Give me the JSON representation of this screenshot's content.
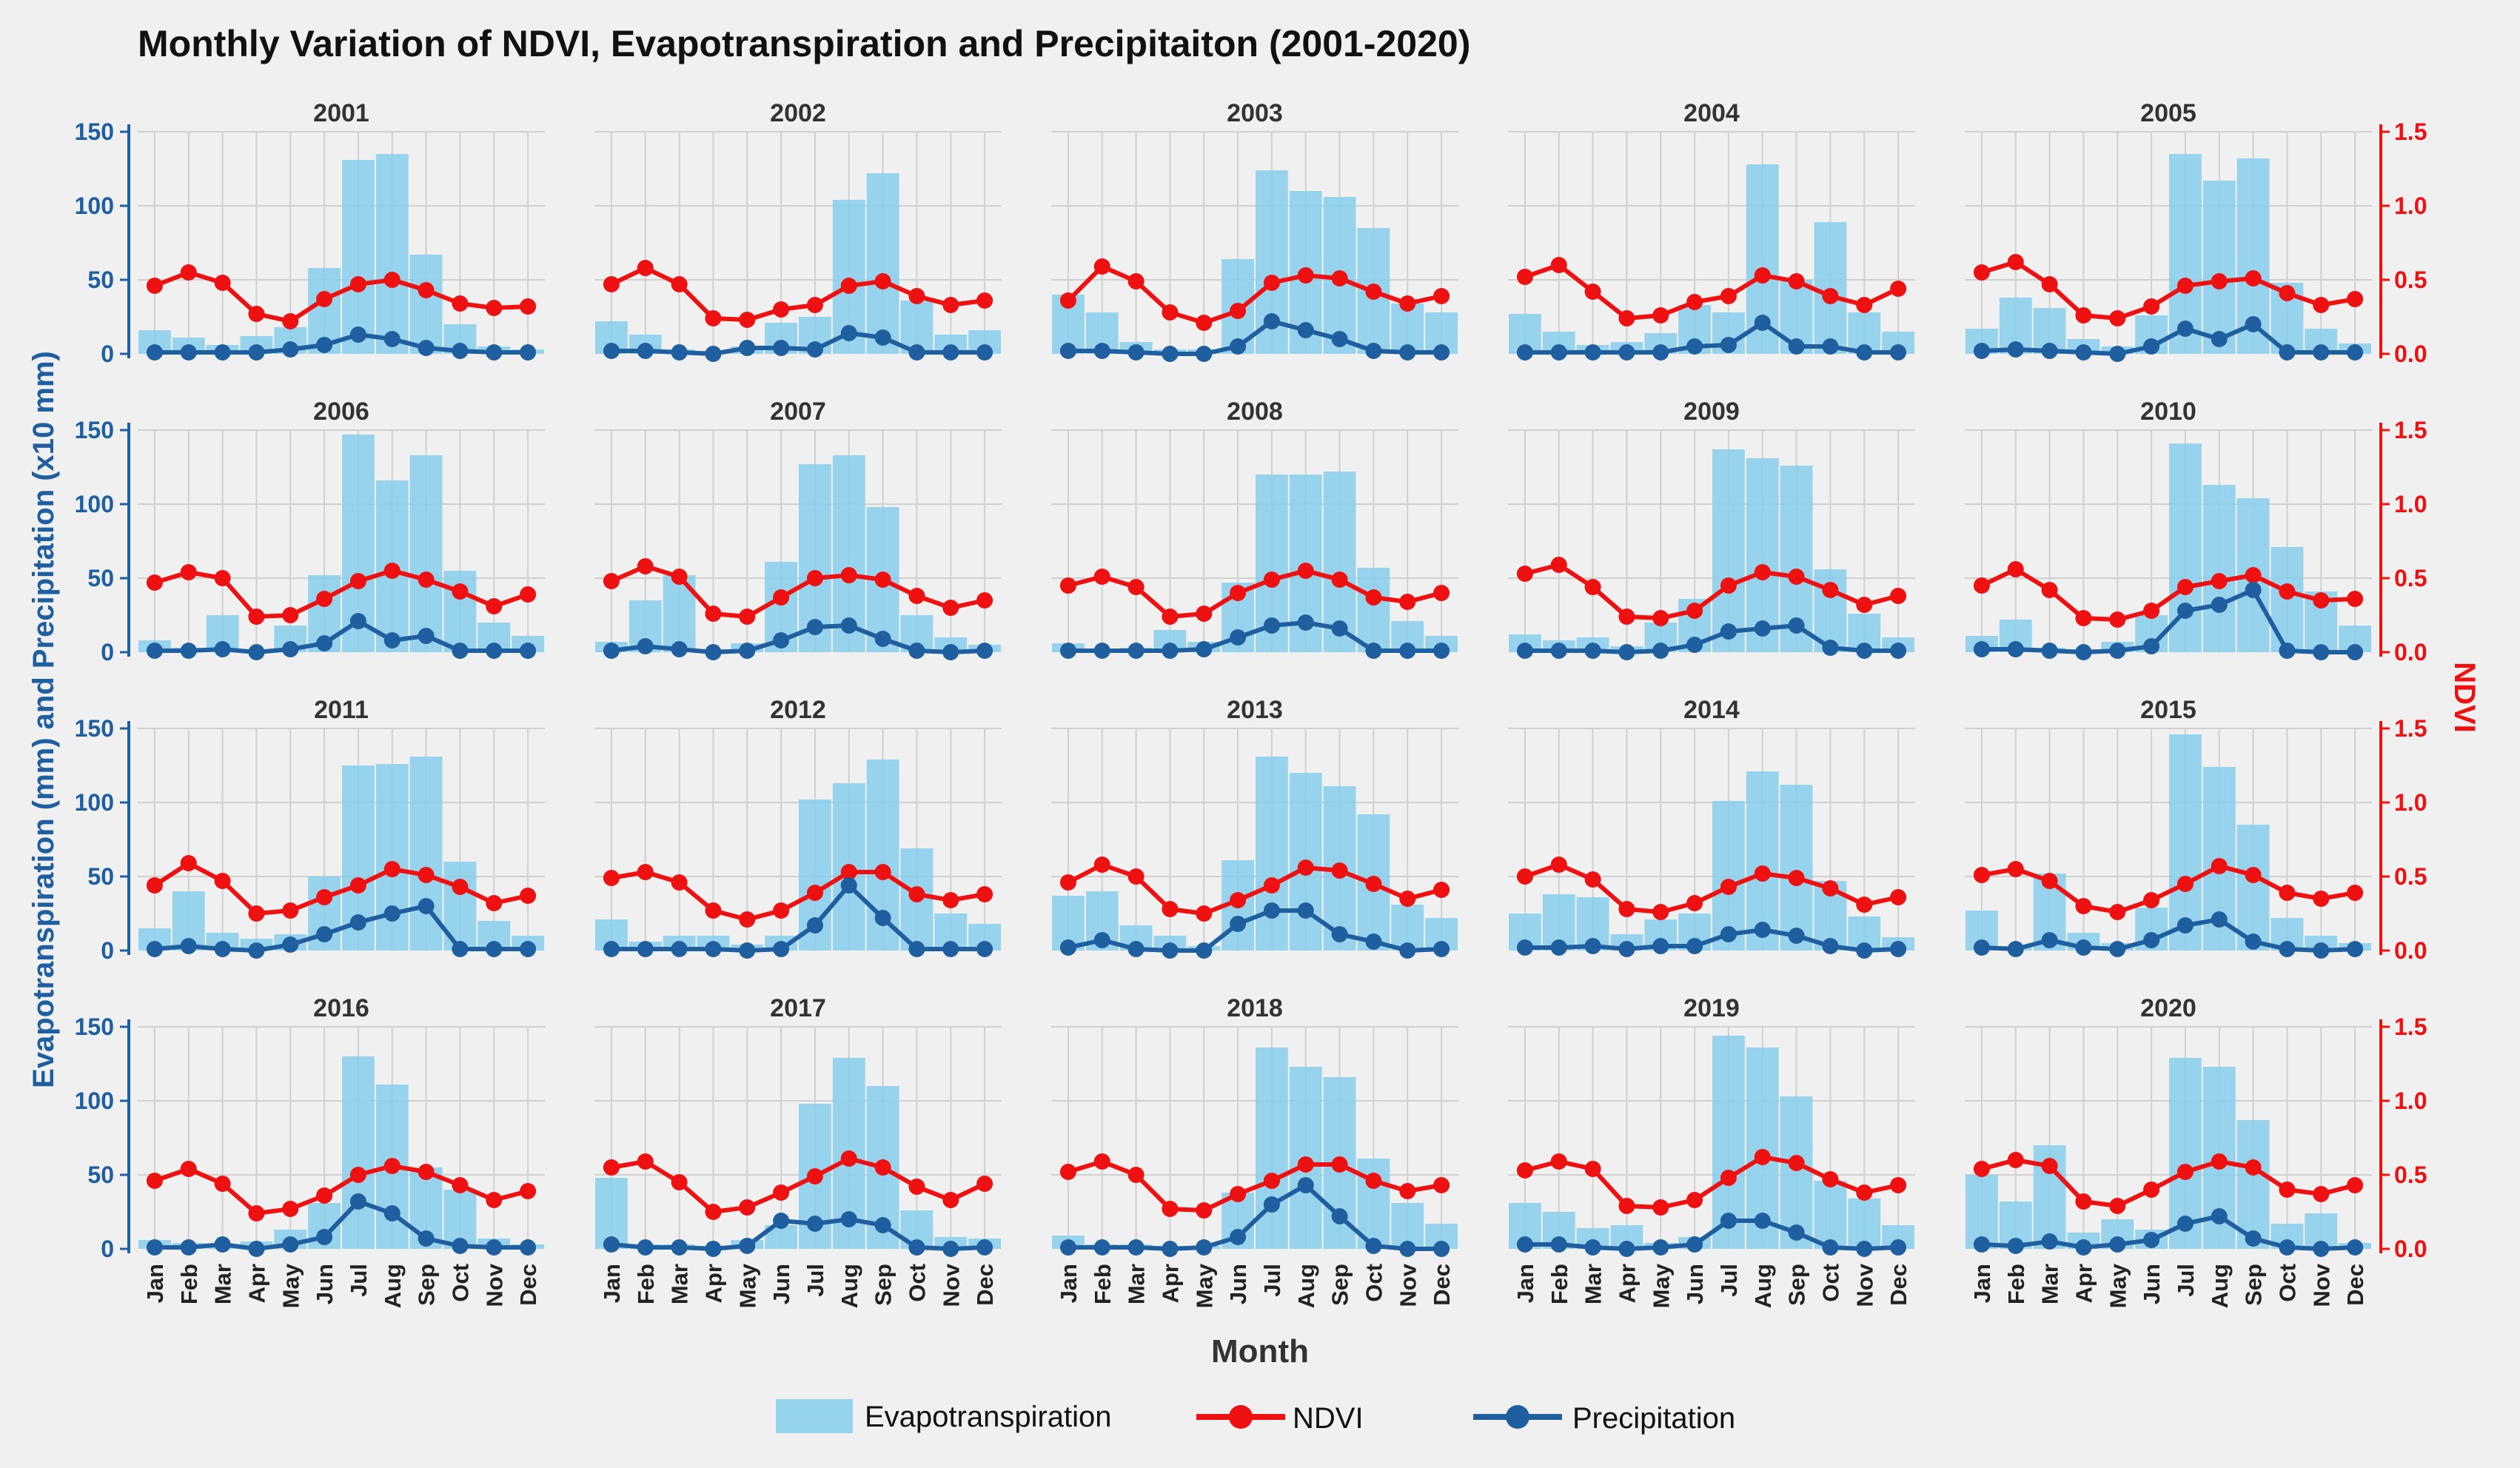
{
  "colors": {
    "background": "#f0f0f0",
    "evapotranspiration": "#87ceeb",
    "ndvi": "#ee1111",
    "precipitation": "#1f5fa0",
    "left_axis": "#1f5fa0",
    "right_axis": "#ee1111",
    "grid": "#d0d0d0",
    "text": "#111111"
  },
  "chart_data": {
    "type": "bar+line",
    "title": "Monthly Variation of NDVI, Evapotranspiration and Precipitaiton (2001-2020)",
    "xlabel": "Month",
    "ylabel_left": "Evapotranspiration (mm) and Precipitation (x10 mm)",
    "ylabel_right": "NDVI",
    "left_ylim": [
      0,
      150
    ],
    "left_ticks": [
      "0",
      "50",
      "100",
      "150"
    ],
    "right_ylim": [
      0,
      1.5
    ],
    "right_ticks": [
      "0.0",
      "0.5",
      "1.0",
      "1.5"
    ],
    "grid": true,
    "legend_position": "bottom-center",
    "legend": [
      "Evapotranspiration",
      "NDVI",
      "Precipitation"
    ],
    "months": [
      "Jan",
      "Feb",
      "Mar",
      "Apr",
      "May",
      "Jun",
      "Jul",
      "Aug",
      "Sep",
      "Oct",
      "Nov",
      "Dec"
    ],
    "panels": [
      {
        "year": "2001",
        "et": [
          16,
          11,
          6,
          12,
          18,
          58,
          131,
          135,
          67,
          20,
          5,
          3
        ],
        "ndvi": [
          0.46,
          0.55,
          0.48,
          0.27,
          0.22,
          0.37,
          0.47,
          0.5,
          0.43,
          0.34,
          0.31,
          0.32
        ],
        "precip": [
          1,
          1,
          1,
          1,
          3,
          6,
          13,
          10,
          4,
          2,
          1,
          1
        ]
      },
      {
        "year": "2002",
        "et": [
          22,
          13,
          3,
          2,
          5,
          21,
          25,
          104,
          122,
          36,
          13,
          16
        ],
        "ndvi": [
          0.47,
          0.58,
          0.47,
          0.24,
          0.23,
          0.3,
          0.33,
          0.46,
          0.49,
          0.39,
          0.33,
          0.36
        ],
        "precip": [
          2,
          2,
          1,
          0,
          4,
          4,
          3,
          14,
          11,
          1,
          1,
          1
        ]
      },
      {
        "year": "2003",
        "et": [
          40,
          28,
          8,
          3,
          3,
          64,
          124,
          110,
          106,
          85,
          34,
          28
        ],
        "ndvi": [
          0.36,
          0.59,
          0.49,
          0.28,
          0.21,
          0.29,
          0.48,
          0.53,
          0.51,
          0.42,
          0.34,
          0.39
        ],
        "precip": [
          2,
          2,
          1,
          0,
          0,
          5,
          22,
          16,
          10,
          2,
          1,
          1
        ]
      },
      {
        "year": "2004",
        "et": [
          27,
          15,
          6,
          8,
          14,
          33,
          28,
          128,
          50,
          89,
          28,
          15
        ],
        "ndvi": [
          0.52,
          0.6,
          0.42,
          0.24,
          0.26,
          0.35,
          0.39,
          0.53,
          0.49,
          0.39,
          0.33,
          0.44
        ],
        "precip": [
          1,
          1,
          1,
          1,
          1,
          5,
          6,
          21,
          5,
          5,
          1,
          1
        ]
      },
      {
        "year": "2005",
        "et": [
          17,
          38,
          31,
          10,
          5,
          26,
          135,
          117,
          132,
          48,
          17,
          7
        ],
        "ndvi": [
          0.55,
          0.62,
          0.47,
          0.26,
          0.24,
          0.32,
          0.46,
          0.49,
          0.51,
          0.41,
          0.33,
          0.37
        ],
        "precip": [
          2,
          3,
          2,
          1,
          0,
          5,
          17,
          10,
          20,
          1,
          1,
          1
        ]
      },
      {
        "year": "2006",
        "et": [
          8,
          3,
          25,
          2,
          18,
          52,
          147,
          116,
          133,
          55,
          20,
          11
        ],
        "ndvi": [
          0.47,
          0.54,
          0.5,
          0.24,
          0.25,
          0.36,
          0.48,
          0.55,
          0.49,
          0.41,
          0.31,
          0.39
        ],
        "precip": [
          1,
          1,
          2,
          0,
          2,
          6,
          21,
          8,
          11,
          1,
          1,
          1
        ]
      },
      {
        "year": "2007",
        "et": [
          7,
          35,
          52,
          2,
          6,
          61,
          127,
          133,
          98,
          25,
          10,
          5
        ],
        "ndvi": [
          0.48,
          0.58,
          0.51,
          0.26,
          0.24,
          0.37,
          0.5,
          0.52,
          0.49,
          0.38,
          0.3,
          0.35
        ],
        "precip": [
          1,
          4,
          2,
          0,
          1,
          8,
          17,
          18,
          9,
          1,
          0,
          1
        ]
      },
      {
        "year": "2008",
        "et": [
          6,
          2,
          3,
          15,
          7,
          47,
          120,
          120,
          122,
          57,
          21,
          11
        ],
        "ndvi": [
          0.45,
          0.51,
          0.44,
          0.24,
          0.26,
          0.4,
          0.49,
          0.55,
          0.49,
          0.37,
          0.34,
          0.4
        ],
        "precip": [
          1,
          1,
          1,
          1,
          2,
          10,
          18,
          20,
          16,
          1,
          1,
          1
        ]
      },
      {
        "year": "2009",
        "et": [
          12,
          8,
          10,
          4,
          20,
          36,
          137,
          131,
          126,
          56,
          26,
          10
        ],
        "ndvi": [
          0.53,
          0.59,
          0.44,
          0.24,
          0.23,
          0.28,
          0.45,
          0.54,
          0.51,
          0.42,
          0.32,
          0.38
        ],
        "precip": [
          1,
          1,
          1,
          0,
          1,
          5,
          14,
          16,
          18,
          3,
          1,
          1
        ]
      },
      {
        "year": "2010",
        "et": [
          11,
          22,
          3,
          2,
          7,
          25,
          141,
          113,
          104,
          71,
          41,
          18
        ],
        "ndvi": [
          0.45,
          0.56,
          0.42,
          0.23,
          0.22,
          0.28,
          0.44,
          0.48,
          0.52,
          0.41,
          0.35,
          0.36
        ],
        "precip": [
          2,
          2,
          1,
          0,
          1,
          4,
          28,
          32,
          42,
          1,
          0,
          0
        ]
      },
      {
        "year": "2011",
        "et": [
          15,
          40,
          12,
          8,
          11,
          50,
          125,
          126,
          131,
          60,
          20,
          10
        ],
        "ndvi": [
          0.44,
          0.59,
          0.47,
          0.25,
          0.27,
          0.36,
          0.44,
          0.55,
          0.51,
          0.43,
          0.32,
          0.37
        ],
        "precip": [
          1,
          3,
          1,
          0,
          4,
          11,
          19,
          25,
          30,
          1,
          1,
          1
        ]
      },
      {
        "year": "2012",
        "et": [
          21,
          6,
          10,
          10,
          4,
          10,
          102,
          113,
          129,
          69,
          25,
          18
        ],
        "ndvi": [
          0.49,
          0.53,
          0.46,
          0.27,
          0.21,
          0.27,
          0.39,
          0.53,
          0.53,
          0.38,
          0.34,
          0.38
        ],
        "precip": [
          1,
          1,
          1,
          1,
          0,
          1,
          17,
          44,
          22,
          1,
          1,
          1
        ]
      },
      {
        "year": "2013",
        "et": [
          37,
          40,
          17,
          10,
          3,
          61,
          131,
          120,
          111,
          92,
          31,
          22
        ],
        "ndvi": [
          0.46,
          0.58,
          0.5,
          0.28,
          0.25,
          0.34,
          0.44,
          0.56,
          0.54,
          0.45,
          0.35,
          0.41
        ],
        "precip": [
          2,
          7,
          1,
          0,
          0,
          18,
          27,
          27,
          11,
          6,
          0,
          1
        ]
      },
      {
        "year": "2014",
        "et": [
          25,
          38,
          36,
          11,
          21,
          25,
          101,
          121,
          112,
          47,
          23,
          9
        ],
        "ndvi": [
          0.5,
          0.58,
          0.48,
          0.28,
          0.26,
          0.32,
          0.43,
          0.52,
          0.49,
          0.42,
          0.31,
          0.36
        ],
        "precip": [
          2,
          2,
          3,
          1,
          3,
          3,
          11,
          14,
          10,
          3,
          0,
          1
        ]
      },
      {
        "year": "2015",
        "et": [
          27,
          3,
          52,
          12,
          5,
          29,
          146,
          124,
          85,
          22,
          10,
          5
        ],
        "ndvi": [
          0.51,
          0.55,
          0.47,
          0.3,
          0.26,
          0.34,
          0.45,
          0.57,
          0.51,
          0.39,
          0.35,
          0.39
        ],
        "precip": [
          2,
          1,
          7,
          2,
          1,
          7,
          17,
          21,
          6,
          1,
          0,
          1
        ]
      },
      {
        "year": "2016",
        "et": [
          6,
          4,
          2,
          5,
          13,
          31,
          130,
          111,
          55,
          40,
          7,
          3
        ],
        "ndvi": [
          0.46,
          0.54,
          0.44,
          0.24,
          0.27,
          0.36,
          0.5,
          0.56,
          0.52,
          0.43,
          0.33,
          0.39
        ],
        "precip": [
          1,
          1,
          3,
          0,
          3,
          8,
          32,
          24,
          7,
          2,
          1,
          1
        ]
      },
      {
        "year": "2017",
        "et": [
          48,
          3,
          3,
          2,
          6,
          16,
          98,
          129,
          110,
          26,
          8,
          7
        ],
        "ndvi": [
          0.55,
          0.59,
          0.45,
          0.25,
          0.28,
          0.38,
          0.49,
          0.61,
          0.55,
          0.42,
          0.33,
          0.44
        ],
        "precip": [
          3,
          1,
          1,
          0,
          2,
          19,
          17,
          20,
          16,
          1,
          0,
          1
        ]
      },
      {
        "year": "2018",
        "et": [
          9,
          3,
          3,
          2,
          2,
          38,
          136,
          123,
          116,
          61,
          31,
          17
        ],
        "ndvi": [
          0.52,
          0.59,
          0.5,
          0.27,
          0.26,
          0.37,
          0.46,
          0.57,
          0.57,
          0.46,
          0.39,
          0.43
        ],
        "precip": [
          1,
          1,
          1,
          0,
          1,
          8,
          30,
          43,
          22,
          2,
          0,
          0
        ]
      },
      {
        "year": "2019",
        "et": [
          31,
          25,
          14,
          16,
          4,
          8,
          144,
          136,
          103,
          46,
          34,
          16
        ],
        "ndvi": [
          0.53,
          0.59,
          0.54,
          0.29,
          0.28,
          0.33,
          0.48,
          0.62,
          0.58,
          0.47,
          0.38,
          0.43
        ],
        "precip": [
          3,
          3,
          1,
          0,
          1,
          3,
          19,
          19,
          11,
          1,
          0,
          1
        ]
      },
      {
        "year": "2020",
        "et": [
          50,
          32,
          70,
          11,
          20,
          13,
          129,
          123,
          87,
          17,
          24,
          4
        ],
        "ndvi": [
          0.54,
          0.6,
          0.56,
          0.32,
          0.29,
          0.4,
          0.52,
          0.59,
          0.55,
          0.4,
          0.37,
          0.43
        ],
        "precip": [
          3,
          2,
          5,
          1,
          3,
          6,
          17,
          22,
          7,
          1,
          0,
          1
        ]
      }
    ]
  }
}
